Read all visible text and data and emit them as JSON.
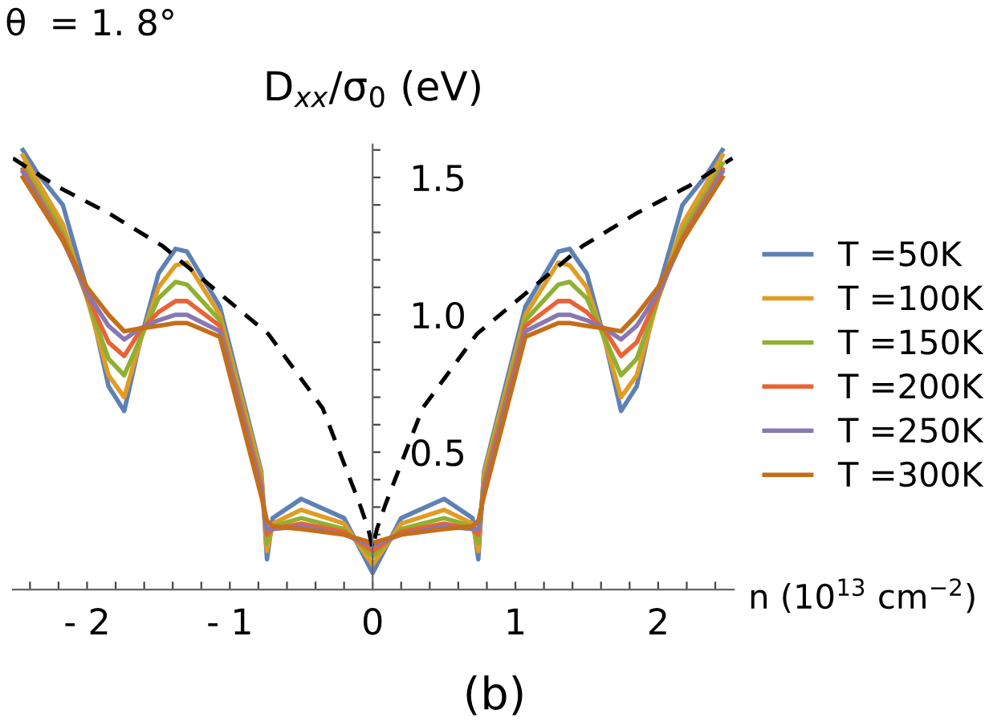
{
  "chart_data": {
    "type": "line",
    "xlabel": "n (10$^{13}$ cm$^{−2}$)",
    "ylabel": "D$_{xx}$/σ$_{0}$ (eV)",
    "annotations": [
      "θ  = 1. 8°",
      "(b)"
    ],
    "x": [
      -2.45,
      -2.34,
      -2.17,
      -2.0,
      -1.85,
      -1.74,
      -1.63,
      -1.5,
      -1.38,
      -1.3,
      -1.07,
      -0.78,
      -0.74,
      -0.7,
      -0.5,
      -0.2,
      0,
      0.2,
      0.5,
      0.7,
      0.74,
      0.78,
      1.07,
      1.3,
      1.38,
      1.5,
      1.63,
      1.74,
      1.85,
      2.0,
      2.17,
      2.34,
      2.45
    ],
    "series": [
      {
        "name": "T =50K",
        "color": "#5e81b5",
        "values": [
          1.6,
          1.51,
          1.4,
          1.09,
          0.74,
          0.65,
          0.9,
          1.15,
          1.24,
          1.23,
          1.03,
          0.43,
          0.11,
          0.26,
          0.33,
          0.26,
          0.06,
          0.26,
          0.33,
          0.26,
          0.11,
          0.43,
          1.03,
          1.23,
          1.24,
          1.15,
          0.9,
          0.65,
          0.74,
          1.09,
          1.4,
          1.51,
          1.6
        ]
      },
      {
        "name": "T =100K",
        "color": "#e19c24",
        "values": [
          1.58,
          1.48,
          1.33,
          1.06,
          0.78,
          0.7,
          0.9,
          1.1,
          1.18,
          1.19,
          1.0,
          0.42,
          0.14,
          0.24,
          0.29,
          0.24,
          0.09,
          0.24,
          0.29,
          0.24,
          0.14,
          0.42,
          1.0,
          1.19,
          1.18,
          1.1,
          0.9,
          0.7,
          0.78,
          1.06,
          1.33,
          1.48,
          1.58
        ]
      },
      {
        "name": "T =150K",
        "color": "#8fb032",
        "values": [
          1.55,
          1.45,
          1.3,
          1.06,
          0.84,
          0.78,
          0.91,
          1.06,
          1.12,
          1.11,
          0.98,
          0.4,
          0.17,
          0.23,
          0.26,
          0.22,
          0.12,
          0.22,
          0.26,
          0.23,
          0.17,
          0.4,
          0.98,
          1.11,
          1.12,
          1.06,
          0.91,
          0.78,
          0.84,
          1.06,
          1.3,
          1.45,
          1.55
        ]
      },
      {
        "name": "T =200K",
        "color": "#eb6235",
        "values": [
          1.53,
          1.43,
          1.28,
          1.07,
          0.9,
          0.85,
          0.94,
          1.01,
          1.05,
          1.05,
          0.96,
          0.38,
          0.2,
          0.22,
          0.24,
          0.21,
          0.14,
          0.21,
          0.24,
          0.22,
          0.2,
          0.38,
          0.96,
          1.05,
          1.05,
          1.01,
          0.94,
          0.85,
          0.9,
          1.07,
          1.28,
          1.43,
          1.53
        ]
      },
      {
        "name": "T =250K",
        "color": "#8778b3",
        "values": [
          1.52,
          1.42,
          1.27,
          1.08,
          0.96,
          0.91,
          0.95,
          0.98,
          1.0,
          1.0,
          0.94,
          0.36,
          0.22,
          0.22,
          0.23,
          0.2,
          0.16,
          0.2,
          0.23,
          0.22,
          0.22,
          0.36,
          0.94,
          1.0,
          1.0,
          0.98,
          0.95,
          0.91,
          0.96,
          1.08,
          1.27,
          1.42,
          1.52
        ]
      },
      {
        "name": "T =300K",
        "color": "#c56e1a",
        "values": [
          1.5,
          1.41,
          1.27,
          1.1,
          1.0,
          0.94,
          0.95,
          0.96,
          0.97,
          0.97,
          0.92,
          0.34,
          0.25,
          0.23,
          0.22,
          0.2,
          0.17,
          0.2,
          0.22,
          0.23,
          0.25,
          0.34,
          0.92,
          0.97,
          0.97,
          0.96,
          0.95,
          0.94,
          1.0,
          1.1,
          1.27,
          1.41,
          1.5
        ]
      },
      {
        "color": "#000000",
        "line_style": "dashed",
        "x": [
          -2.52,
          -2.22,
          -1.85,
          -1.47,
          -1.1,
          -0.73,
          -0.35,
          -0.09,
          -0.03,
          0,
          0.03,
          0.09,
          0.35,
          0.73,
          1.1,
          1.47,
          1.85,
          2.22,
          2.52
        ],
        "values": [
          1.57,
          1.47,
          1.37,
          1.25,
          1.09,
          0.93,
          0.66,
          0.31,
          0.22,
          0.15,
          0.22,
          0.31,
          0.66,
          0.93,
          1.09,
          1.25,
          1.37,
          1.47,
          1.57
        ]
      }
    ],
    "xlim": [
      -2.52,
      2.53
    ],
    "ylim": [
      0,
      1.62
    ],
    "xticks": [
      {
        "value": -2.4,
        "label": null
      },
      {
        "value": -2.2,
        "label": null
      },
      {
        "value": -2,
        "label": "- 2"
      },
      {
        "value": -1.8,
        "label": null
      },
      {
        "value": -1.6,
        "label": null
      },
      {
        "value": -1.4,
        "label": null
      },
      {
        "value": -1.2,
        "label": null
      },
      {
        "value": -1,
        "label": "- 1"
      },
      {
        "value": -0.8,
        "label": null
      },
      {
        "value": -0.6,
        "label": null
      },
      {
        "value": -0.4,
        "label": null
      },
      {
        "value": -0.2,
        "label": null
      },
      {
        "value": 0,
        "label": "0"
      },
      {
        "value": 0.2,
        "label": null
      },
      {
        "value": 0.4,
        "label": null
      },
      {
        "value": 0.6,
        "label": null
      },
      {
        "value": 0.8,
        "label": null
      },
      {
        "value": 1,
        "label": "1"
      },
      {
        "value": 1.2,
        "label": null
      },
      {
        "value": 1.4,
        "label": null
      },
      {
        "value": 1.6,
        "label": null
      },
      {
        "value": 1.8,
        "label": null
      },
      {
        "value": 2,
        "label": "2"
      },
      {
        "value": 2.2,
        "label": null
      },
      {
        "value": 2.4,
        "label": null
      }
    ],
    "yticks": [
      {
        "value": 0.1,
        "label": null
      },
      {
        "value": 0.2,
        "label": null
      },
      {
        "value": 0.3,
        "label": null
      },
      {
        "value": 0.4,
        "label": null
      },
      {
        "value": 0.5,
        "label": "0.5"
      },
      {
        "value": 0.6,
        "label": null
      },
      {
        "value": 0.7,
        "label": null
      },
      {
        "value": 0.8,
        "label": null
      },
      {
        "value": 0.9,
        "label": null
      },
      {
        "value": 1.0,
        "label": "1.0"
      },
      {
        "value": 1.1,
        "label": null
      },
      {
        "value": 1.2,
        "label": null
      },
      {
        "value": 1.3,
        "label": null
      },
      {
        "value": 1.4,
        "label": null
      },
      {
        "value": 1.5,
        "label": "1.5"
      },
      {
        "value": 1.6,
        "label": null
      }
    ],
    "grid": false,
    "legend": "right",
    "marker": "none",
    "line_style": "solid"
  }
}
